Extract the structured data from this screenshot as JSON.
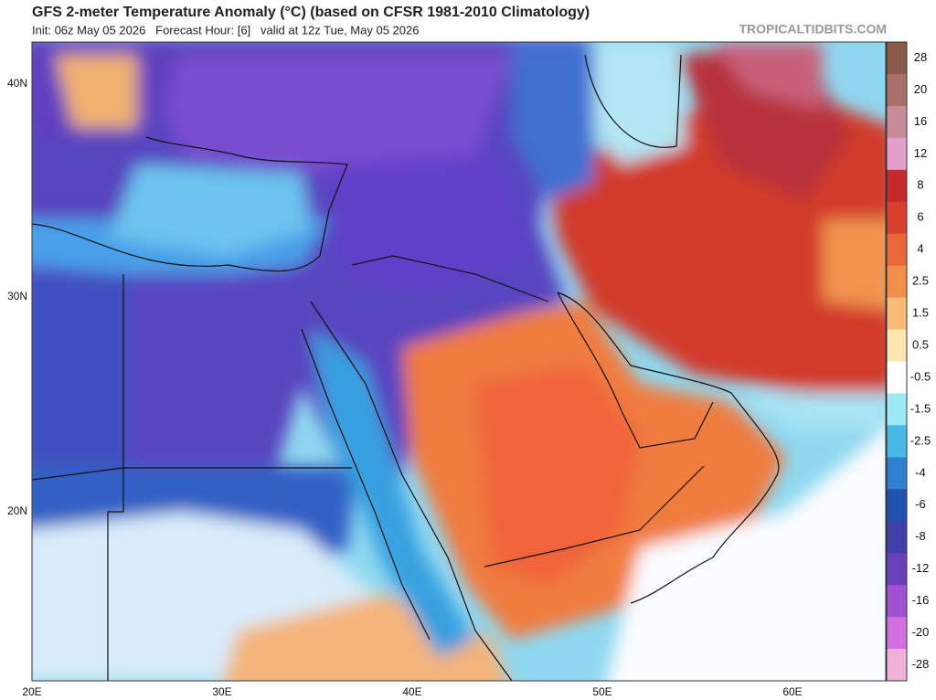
{
  "header": {
    "title": "GFS 2-meter Temperature Anomaly (°C) (based on CFSR 1981-2010 Climatology)",
    "subtitle": "Init: 06z May 05 2026   Forecast Hour: [6]   valid at 12z Tue, May 05 2026",
    "site": "TROPICALTIDBITS.COM"
  },
  "map": {
    "lat_labels": [
      "40N",
      "30N",
      "20N"
    ],
    "lon_labels": [
      "20E",
      "30E",
      "40E",
      "50E",
      "60E"
    ]
  },
  "colorbar": {
    "labels": [
      28,
      20,
      16,
      12,
      8,
      6,
      4,
      2.5,
      1.5,
      0.5,
      -0.5,
      -1.5,
      -2.5,
      -4,
      -6,
      -8,
      -12,
      -16,
      -20,
      -28
    ],
    "colors": [
      "#8a5a48",
      "#a87068",
      "#c88c98",
      "#e4a0cc",
      "#c42a2c",
      "#d8402e",
      "#e8683a",
      "#f0904c",
      "#f8bc78",
      "#fde6b0",
      "#ffffff",
      "#9ce8f4",
      "#48b8e4",
      "#3080d0",
      "#2050b0",
      "#4040a8",
      "#6a40b8",
      "#a050d0",
      "#d070e0",
      "#f0b0d8"
    ]
  }
}
